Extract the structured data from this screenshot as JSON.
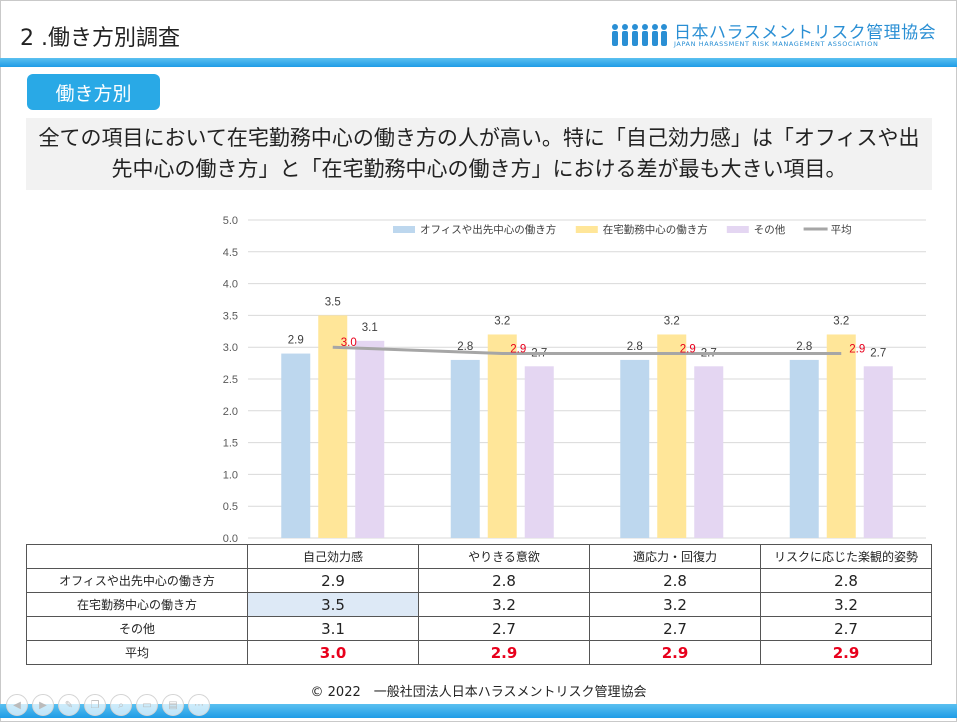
{
  "page": {
    "title": "2 .働き方別調査",
    "section_tag": "働き方別",
    "summary_line1": "全ての項目において在宅勤務中心の働き方の人が高い。特に「自己効力感」は「オフィスや出",
    "summary_line2": "先中心の働き方」と「在宅勤務中心の働き方」における差が最も大きい項目。",
    "footer": "© 2022　一般社団法人日本ハラスメントリスク管理協会"
  },
  "logo": {
    "name": "日本ハラスメントリスク管理協会",
    "subtitle": "JAPAN HARASSMENT RISK MANAGEMENT ASSOCIATION"
  },
  "colors": {
    "accent": "#29a9e6",
    "office": "#bdd7ee",
    "remote": "#ffe699",
    "other": "#e4d6f2",
    "average": "#a6a6a6",
    "average_label": "#e8001c"
  },
  "chart_data": {
    "type": "bar",
    "categories": [
      "自己効力感",
      "やりきる意欲",
      "適応力・回復力",
      "リスクに応じた楽観的姿勢"
    ],
    "series": [
      {
        "name": "オフィスや出先中心の働き方",
        "values": [
          2.9,
          2.8,
          2.8,
          2.8
        ]
      },
      {
        "name": "在宅勤務中心の働き方",
        "values": [
          3.5,
          3.2,
          3.2,
          3.2
        ]
      },
      {
        "name": "その他",
        "values": [
          3.1,
          2.7,
          2.7,
          2.7
        ]
      }
    ],
    "line_series": {
      "name": "平均",
      "values": [
        3.0,
        2.9,
        2.9,
        2.9
      ]
    },
    "ylim": [
      0,
      5
    ],
    "yticks": [
      "0.0",
      "0.5",
      "1.0",
      "1.5",
      "2.0",
      "2.5",
      "3.0",
      "3.5",
      "4.0",
      "4.5",
      "5.0"
    ],
    "grid": true,
    "legend": "top-right"
  },
  "table": {
    "headers": [
      "自己効力感",
      "やりきる意欲",
      "適応力・回復力",
      "リスクに応じた楽観的姿勢"
    ],
    "rows": [
      {
        "label": "オフィスや出先中心の働き方",
        "values": [
          "2.9",
          "2.8",
          "2.8",
          "2.8"
        ]
      },
      {
        "label": "在宅勤務中心の働き方",
        "values": [
          "3.5",
          "3.2",
          "3.2",
          "3.2"
        ]
      },
      {
        "label": "その他",
        "values": [
          "3.1",
          "2.7",
          "2.7",
          "2.7"
        ]
      },
      {
        "label": "平均",
        "values": [
          "3.0",
          "2.9",
          "2.9",
          "2.9"
        ]
      }
    ]
  },
  "controls": {
    "icons": [
      "prev-icon",
      "next-icon",
      "pen-icon",
      "copy-icon",
      "zoom-icon",
      "slides-icon",
      "notes-icon",
      "more-icon"
    ],
    "glyphs": [
      "◀",
      "▶",
      "✎",
      "❐",
      "⌕",
      "▭",
      "▤",
      "⋯"
    ]
  }
}
